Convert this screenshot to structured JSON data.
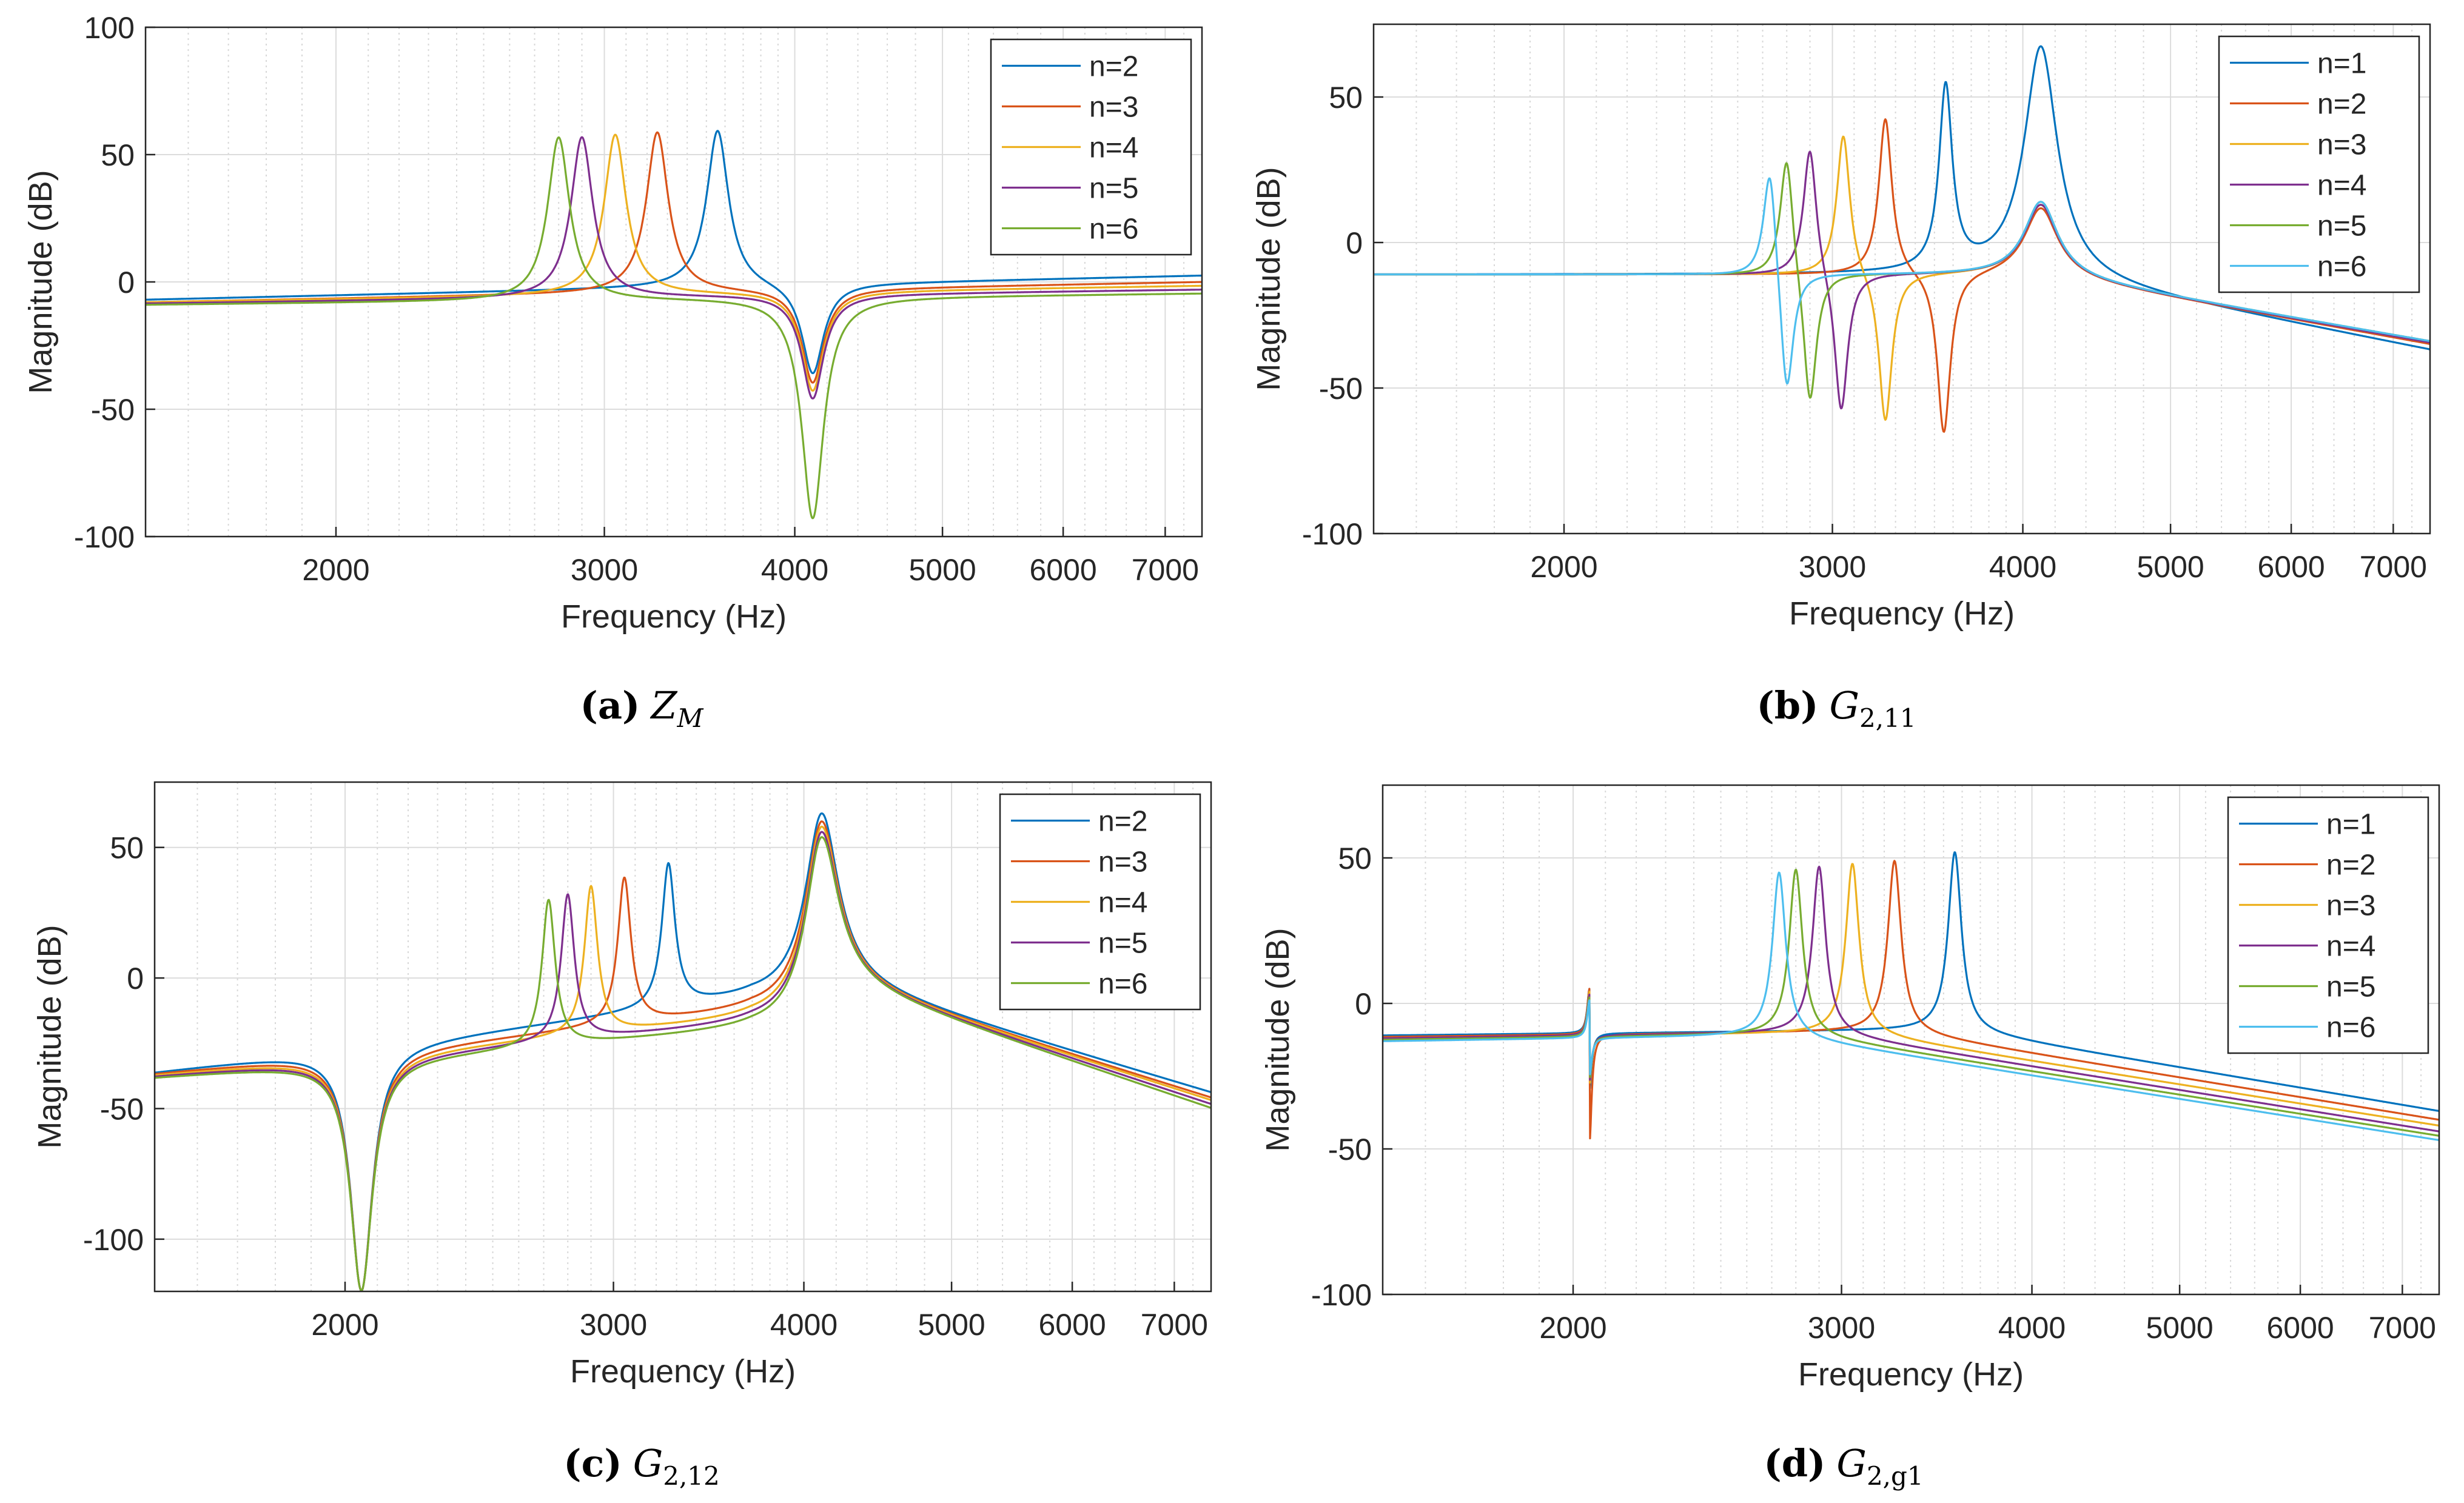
{
  "chart_data": [
    {
      "type": "line",
      "panel_label": "(a)",
      "caption_symbol": "Z",
      "caption_subscript": "M",
      "xlabel": "Frequency (Hz)",
      "ylabel": "Magnitude (dB)",
      "xscale": "log",
      "xlim": [
        1500,
        7400
      ],
      "ylim": [
        -100,
        100
      ],
      "xticks": [
        2000,
        3000,
        4000,
        5000,
        6000,
        7000
      ],
      "xtick_labels": [
        "2000",
        "3000",
        "4000",
        "5000",
        "6000",
        "7000"
      ],
      "yticks": [
        -100,
        -50,
        0,
        50,
        100
      ],
      "ytick_labels": [
        "-100",
        "-50",
        "0",
        "50",
        "100"
      ],
      "grid": true,
      "legend_position": "top-right",
      "shape": "zm",
      "common_antiresonance": {
        "freq": 4110,
        "min": -93
      },
      "series": [
        {
          "name": "n=2",
          "color": "#0072BD",
          "resonance_freq": 3560,
          "peak": 60,
          "start": -7,
          "end": 2.5,
          "antires_depth": -37
        },
        {
          "name": "n=3",
          "color": "#D95319",
          "resonance_freq": 3250,
          "peak": 59,
          "start": -8,
          "end": 0,
          "antires_depth": -40
        },
        {
          "name": "n=4",
          "color": "#EDB120",
          "resonance_freq": 3050,
          "peak": 58,
          "start": -8,
          "end": -1.5,
          "antires_depth": -43
        },
        {
          "name": "n=5",
          "color": "#7E2F8E",
          "resonance_freq": 2900,
          "peak": 57,
          "start": -8.5,
          "end": -3,
          "antires_depth": -46
        },
        {
          "name": "n=6",
          "color": "#77AC30",
          "resonance_freq": 2800,
          "peak": 57,
          "start": -9,
          "end": -4.5,
          "antires_depth": -93
        }
      ]
    },
    {
      "type": "line",
      "panel_label": "(b)",
      "caption_symbol": "G",
      "caption_subscript": "2,11",
      "xlabel": "Frequency (Hz)",
      "ylabel": "Magnitude (dB)",
      "xscale": "log",
      "xlim": [
        1500,
        7400
      ],
      "ylim": [
        -100,
        75
      ],
      "xticks": [
        2000,
        3000,
        4000,
        5000,
        6000,
        7000
      ],
      "xtick_labels": [
        "2000",
        "3000",
        "4000",
        "5000",
        "6000",
        "7000"
      ],
      "yticks": [
        -100,
        -50,
        0,
        50
      ],
      "ytick_labels": [
        "-100",
        "-50",
        "0",
        "50"
      ],
      "grid": true,
      "legend_position": "top-right",
      "shape": "g211",
      "common_resonance": {
        "freq": 4110
      },
      "series": [
        {
          "name": "n=1",
          "color": "#0072BD",
          "resonance_freq": 3560,
          "peak": 52,
          "start": -11,
          "end": -37,
          "main_peak": 67
        },
        {
          "name": "n=2",
          "color": "#D95319",
          "resonance_freq": 3250,
          "peak": 43,
          "antires_freq": 3550,
          "antires_depth": -67,
          "start": -11,
          "end": -35,
          "main_peak": 12
        },
        {
          "name": "n=3",
          "color": "#EDB120",
          "resonance_freq": 3050,
          "peak": 38,
          "antires_freq": 3250,
          "antires_depth": -63,
          "start": -11,
          "end": -34.5,
          "main_peak": 13
        },
        {
          "name": "n=4",
          "color": "#7E2F8E",
          "resonance_freq": 2900,
          "peak": 34,
          "antires_freq": 3040,
          "antires_depth": -60,
          "start": -11,
          "end": -34.5,
          "main_peak": 13
        },
        {
          "name": "n=5",
          "color": "#77AC30",
          "resonance_freq": 2800,
          "peak": 32,
          "antires_freq": 2900,
          "antires_depth": -58,
          "start": -11,
          "end": -34,
          "main_peak": 14
        },
        {
          "name": "n=6",
          "color": "#4DBEEE",
          "resonance_freq": 2730,
          "peak": 30,
          "antires_freq": 2800,
          "antires_depth": -56,
          "start": -11,
          "end": -34,
          "main_peak": 14
        }
      ]
    },
    {
      "type": "line",
      "panel_label": "(c)",
      "caption_symbol": "G",
      "caption_subscript": "2,12",
      "xlabel": "Frequency (Hz)",
      "ylabel": "Magnitude (dB)",
      "xscale": "log",
      "xlim": [
        1500,
        7400
      ],
      "ylim": [
        -120,
        75
      ],
      "xticks": [
        2000,
        3000,
        4000,
        5000,
        6000,
        7000
      ],
      "xtick_labels": [
        "2000",
        "3000",
        "4000",
        "5000",
        "6000",
        "7000"
      ],
      "yticks": [
        -100,
        -50,
        0,
        50
      ],
      "ytick_labels": [
        "-100",
        "-50",
        "0",
        "50"
      ],
      "grid": true,
      "legend_position": "top-right",
      "shape": "g212",
      "common_antiresonance": {
        "freq": 2050,
        "min": -120
      },
      "common_resonance": {
        "freq": 4110
      },
      "series": [
        {
          "name": "n=2",
          "color": "#0072BD",
          "resonance_freq": 3260,
          "peak": 43,
          "start": -36,
          "end": -44,
          "valley": -8,
          "main_peak": 63
        },
        {
          "name": "n=3",
          "color": "#D95319",
          "resonance_freq": 3050,
          "peak": 38,
          "start": -36.5,
          "end": -46,
          "valley": -13,
          "main_peak": 60
        },
        {
          "name": "n=4",
          "color": "#EDB120",
          "resonance_freq": 2900,
          "peak": 35,
          "start": -37,
          "end": -47,
          "valley": -16,
          "main_peak": 58
        },
        {
          "name": "n=5",
          "color": "#7E2F8E",
          "resonance_freq": 2800,
          "peak": 32,
          "start": -37.5,
          "end": -48.5,
          "valley": -18,
          "main_peak": 56
        },
        {
          "name": "n=6",
          "color": "#77AC30",
          "resonance_freq": 2720,
          "peak": 30,
          "start": -38,
          "end": -50,
          "valley": -20,
          "main_peak": 54
        }
      ]
    },
    {
      "type": "line",
      "panel_label": "(d)",
      "caption_symbol": "G",
      "caption_subscript": "2,g1",
      "xlabel": "Frequency (Hz)",
      "ylabel": "Magnitude (dB)",
      "xscale": "log",
      "xlim": [
        1500,
        7400
      ],
      "ylim": [
        -100,
        75
      ],
      "xticks": [
        2000,
        3000,
        4000,
        5000,
        6000,
        7000
      ],
      "xtick_labels": [
        "2000",
        "3000",
        "4000",
        "5000",
        "6000",
        "7000"
      ],
      "yticks": [
        -100,
        -50,
        0,
        50
      ],
      "ytick_labels": [
        "-100",
        "-50",
        "0",
        "50"
      ],
      "grid": true,
      "legend_position": "top-right",
      "shape": "g2g1",
      "spike_freq": 2050,
      "series": [
        {
          "name": "n=1",
          "color": "#0072BD",
          "resonance_freq": 3560,
          "peak": 52,
          "start": -11,
          "end": -37,
          "spike_up": 5,
          "spike_down": -30
        },
        {
          "name": "n=2",
          "color": "#D95319",
          "resonance_freq": 3250,
          "peak": 49,
          "start": -11.5,
          "end": -40,
          "spike_up": 5,
          "spike_down": -48
        },
        {
          "name": "n=3",
          "color": "#EDB120",
          "resonance_freq": 3050,
          "peak": 48,
          "start": -12,
          "end": -42,
          "spike_up": 4,
          "spike_down": -28
        },
        {
          "name": "n=4",
          "color": "#7E2F8E",
          "resonance_freq": 2900,
          "peak": 47,
          "start": -12,
          "end": -44,
          "spike_up": 3,
          "spike_down": -27
        },
        {
          "name": "n=5",
          "color": "#77AC30",
          "resonance_freq": 2800,
          "peak": 46,
          "start": -12.5,
          "end": -45.5,
          "spike_up": 2,
          "spike_down": -26
        },
        {
          "name": "n=6",
          "color": "#4DBEEE",
          "resonance_freq": 2730,
          "peak": 45,
          "start": -13,
          "end": -47,
          "spike_up": 1,
          "spike_down": -25
        }
      ]
    }
  ]
}
